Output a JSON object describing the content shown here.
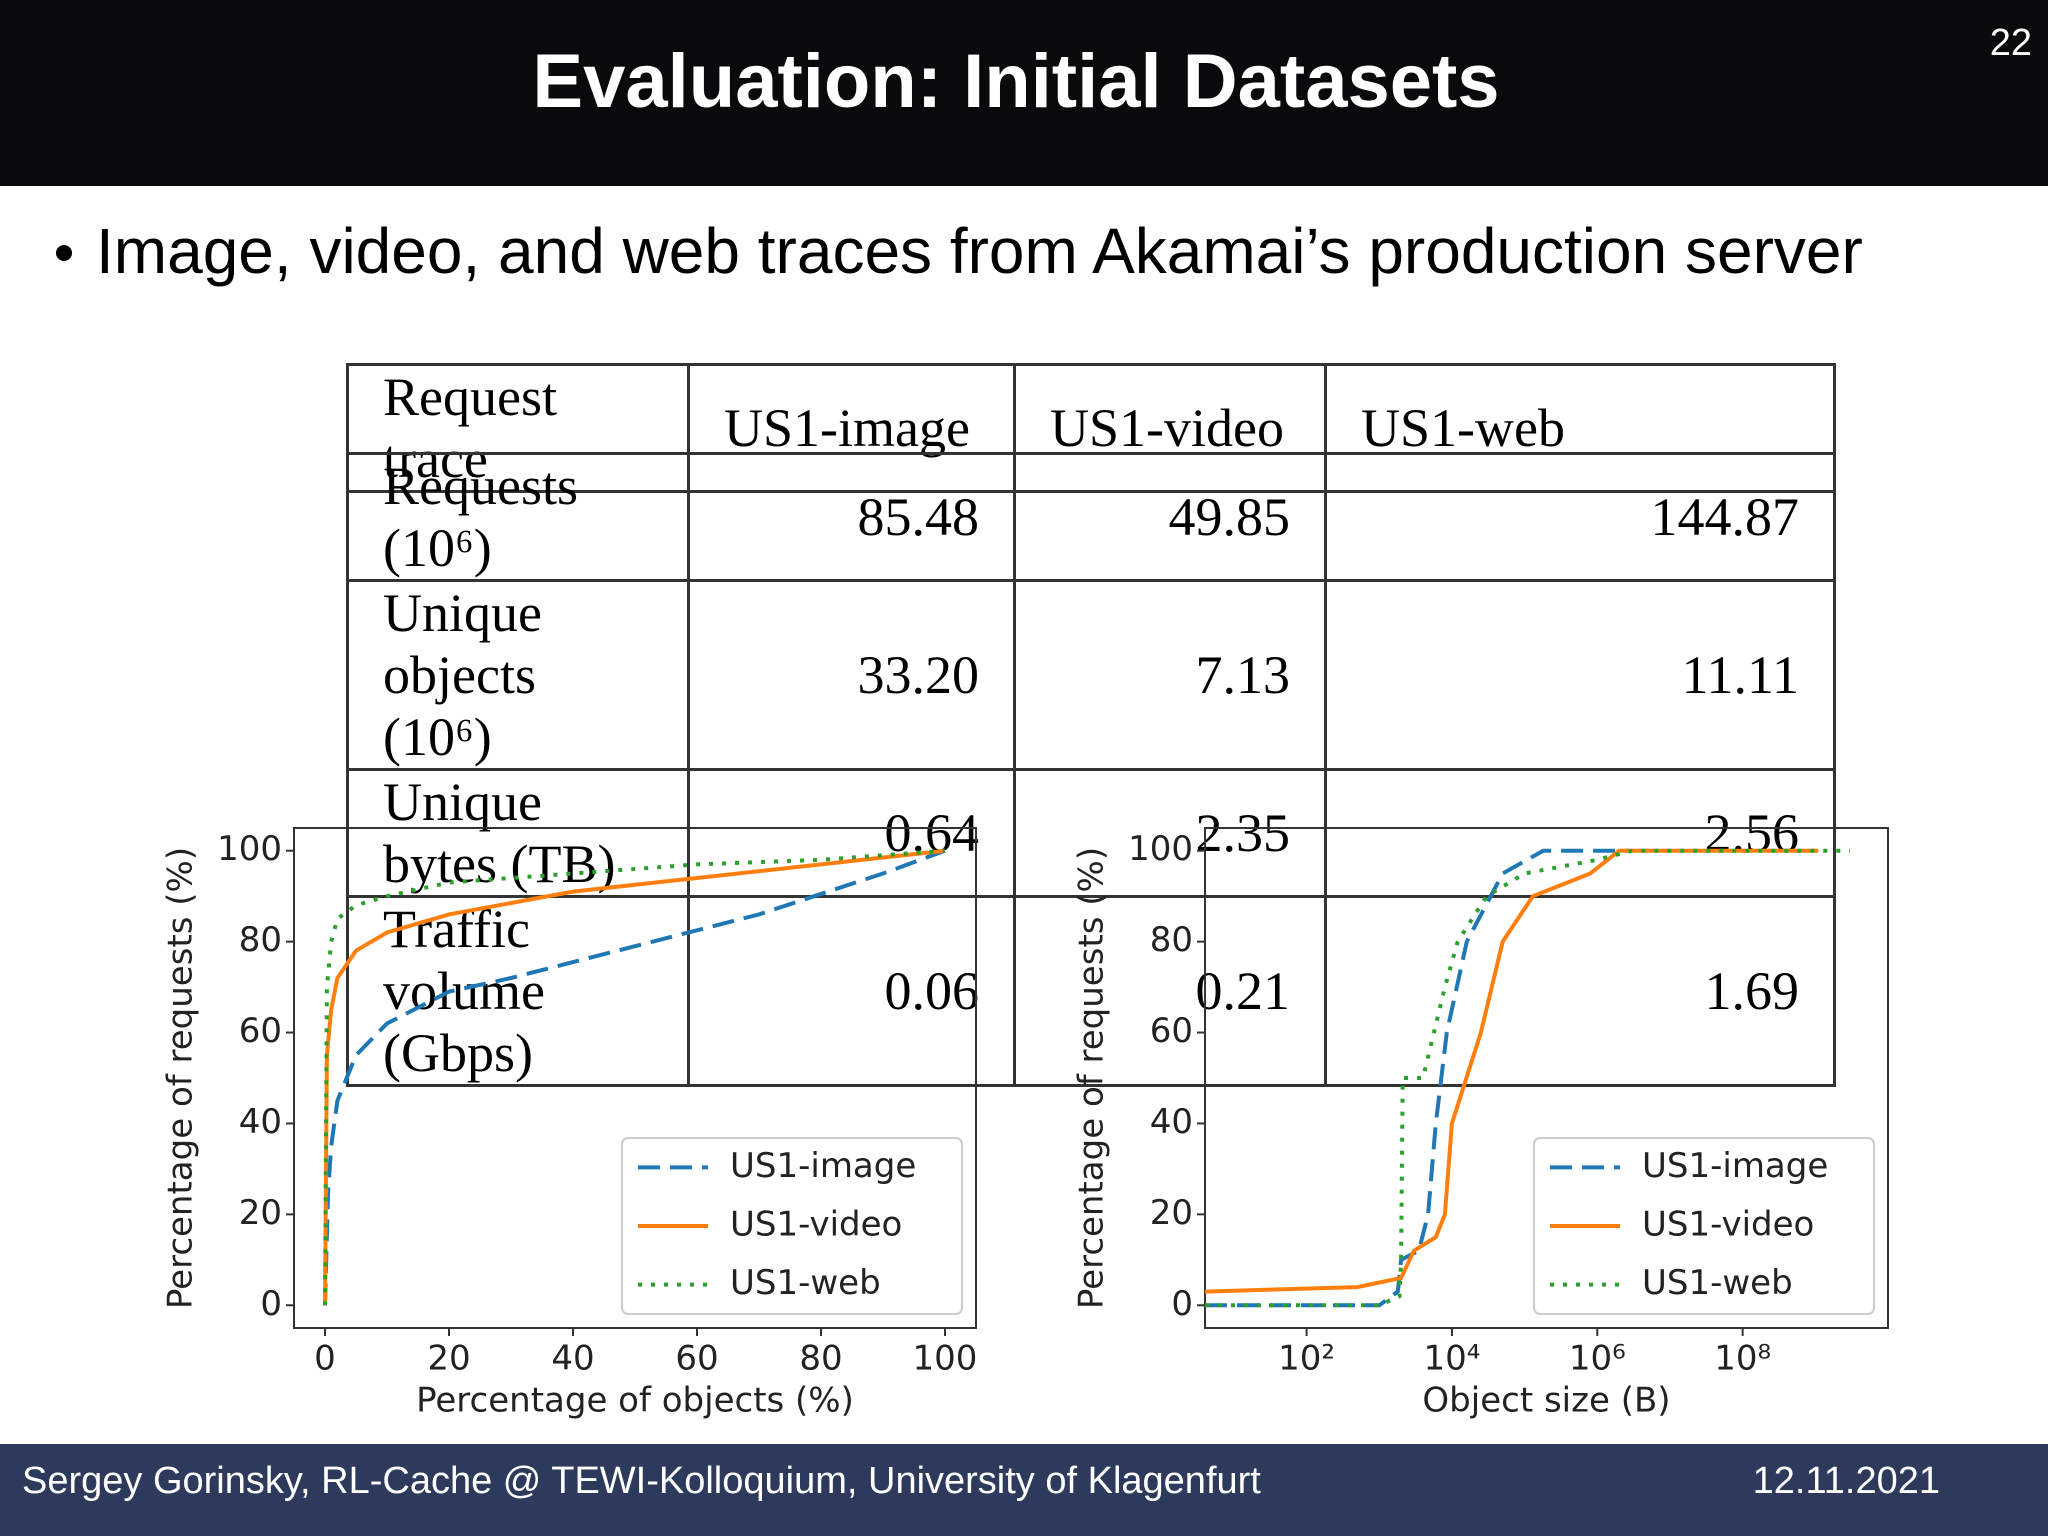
{
  "header": {
    "title": "Evaluation: Initial Datasets",
    "page_number": "22"
  },
  "bullet": "Image, video, and web traces from Akamai’s production server",
  "table": {
    "header": [
      "Request trace",
      "US1-image",
      "US1-video",
      "US1-web"
    ],
    "rows": [
      [
        "Requests (10⁶)",
        "85.48",
        "49.85",
        "144.87"
      ],
      [
        "Unique objects (10⁶)",
        "33.20",
        "7.13",
        "11.11"
      ],
      [
        "Unique bytes (TB)",
        "0.64",
        "2.35",
        "2.56"
      ],
      [
        "Traffic volume (Gbps)",
        "0.06",
        "0.21",
        "1.69"
      ]
    ]
  },
  "chart_data": [
    {
      "type": "line",
      "x_label": "Percentage of objects (%)",
      "y_label": "Percentage of requests (%)",
      "xlim": [
        -5,
        105
      ],
      "ylim": [
        -5,
        105
      ],
      "xticks": [
        0,
        20,
        40,
        60,
        80,
        100
      ],
      "yticks": [
        0,
        20,
        40,
        60,
        80,
        100
      ],
      "log_x": false,
      "legend": "lower right",
      "series": [
        {
          "name": "US1-image",
          "color": "#1f77b4",
          "linestyle": "dashed",
          "x": [
            0,
            0.5,
            1,
            2,
            5,
            10,
            20,
            30,
            50,
            70,
            90,
            100
          ],
          "values": [
            0,
            25,
            35,
            45,
            55,
            62,
            69,
            72,
            79,
            86,
            95,
            100
          ]
        },
        {
          "name": "US1-video",
          "color": "#ff7f0e",
          "linestyle": "solid",
          "x": [
            0,
            0.3,
            1,
            2,
            5,
            10,
            20,
            40,
            60,
            80,
            100
          ],
          "values": [
            0,
            55,
            65,
            72,
            78,
            82,
            86,
            91,
            94,
            97,
            100
          ]
        },
        {
          "name": "US1-web",
          "color": "#2ca02c",
          "linestyle": "dotted",
          "x": [
            0,
            0.3,
            1,
            2,
            5,
            10,
            20,
            40,
            60,
            80,
            100
          ],
          "values": [
            0,
            70,
            80,
            85,
            88,
            90,
            93,
            95,
            97,
            98,
            100
          ]
        }
      ]
    },
    {
      "type": "line",
      "x_label": "Object size (B)",
      "y_label": "Percentage of requests (%)",
      "xlim": [
        4,
        10000000000
      ],
      "ylim": [
        -5,
        105
      ],
      "xticks": [
        {
          "value": 100,
          "label": "10²"
        },
        {
          "value": 10000,
          "label": "10⁴"
        },
        {
          "value": 1000000,
          "label": "10⁶"
        },
        {
          "value": 100000000,
          "label": "10⁸"
        }
      ],
      "yticks": [
        0,
        20,
        40,
        60,
        80,
        100
      ],
      "log_x": true,
      "legend": "lower right",
      "series": [
        {
          "name": "US1-image",
          "color": "#1f77b4",
          "linestyle": "dashed",
          "x": [
            4,
            1000,
            1800,
            2000,
            3500,
            4700,
            6000,
            8500,
            16000,
            50000,
            180000,
            2800000
          ],
          "values": [
            0,
            0,
            3,
            10,
            12,
            20,
            40,
            60,
            80,
            95,
            100,
            100
          ]
        },
        {
          "name": "US1-video",
          "color": "#ff7f0e",
          "linestyle": "solid",
          "x": [
            4,
            500,
            1000,
            2000,
            3000,
            6000,
            8000,
            10000,
            25000,
            50000,
            130000,
            800000,
            2000000,
            1100000000
          ],
          "values": [
            3,
            4,
            5,
            6,
            12,
            15,
            20,
            40,
            60,
            80,
            90,
            95,
            100,
            100
          ]
        },
        {
          "name": "US1-web",
          "color": "#2ca02c",
          "linestyle": "dotted",
          "x": [
            4,
            1000,
            1900,
            2000,
            2100,
            4000,
            8000,
            12000,
            30000,
            100000,
            1000000,
            3000000,
            3000000000
          ],
          "values": [
            0,
            0,
            2,
            10,
            50,
            50,
            70,
            80,
            90,
            95,
            98,
            100,
            100
          ]
        }
      ]
    }
  ],
  "footer": {
    "left": "Sergey Gorinsky, RL-Cache @ TEWI-Kolloquium, University of Klagenfurt",
    "date": "12.11.2021"
  }
}
